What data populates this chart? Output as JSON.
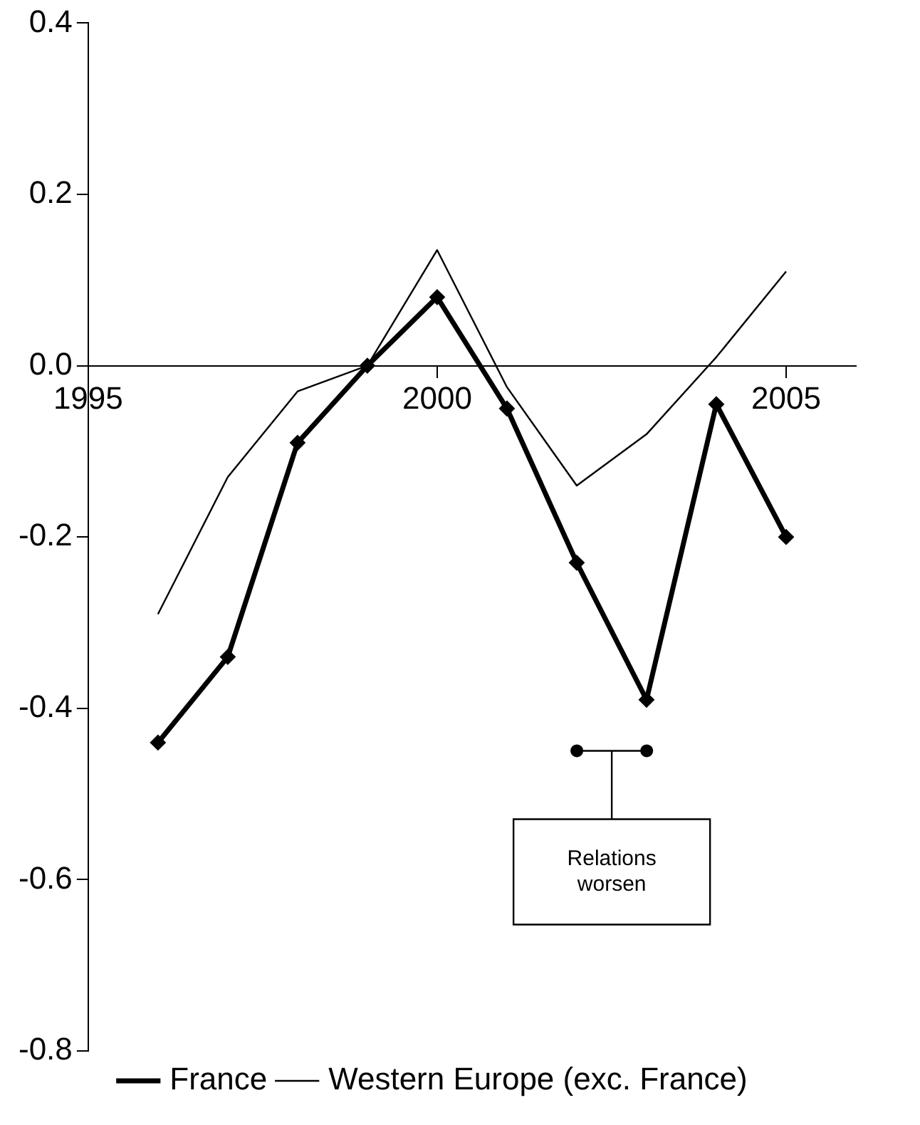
{
  "chart_data": {
    "type": "line",
    "xlim": [
      1995,
      2006
    ],
    "xticks": [
      1995,
      2000,
      2005
    ],
    "ylim": [
      -0.8,
      0.4
    ],
    "yticks": [
      {
        "value": -0.8,
        "label": "-0.8"
      },
      {
        "value": -0.6,
        "label": "-0.6"
      },
      {
        "value": -0.4,
        "label": "-0.4"
      },
      {
        "value": -0.2,
        "label": "-0.2"
      },
      {
        "value": 0,
        "label": "0.0"
      },
      {
        "value": 0.2,
        "label": "0.2"
      },
      {
        "value": 0.4,
        "label": "0.4"
      }
    ],
    "x": [
      1996,
      1997,
      1998,
      1999,
      2000,
      2001,
      2002,
      2003,
      2004,
      2005
    ],
    "series": [
      {
        "name": "France",
        "color": "#000000",
        "marker": "diamond",
        "values": [
          -0.44,
          -0.34,
          -0.09,
          0.0,
          0.08,
          -0.05,
          -0.23,
          -0.39,
          -0.045,
          -0.2
        ]
      },
      {
        "name": "Western Europe (exc. France)",
        "color": "#000000",
        "marker": "none",
        "values": [
          -0.29,
          -0.13,
          -0.03,
          0.0,
          0.135,
          -0.025,
          -0.14,
          -0.08,
          0.01,
          0.11
        ]
      }
    ],
    "annotations": [
      "Relations worsen"
    ],
    "grid": false,
    "legend": "bottom",
    "line_style": "solid"
  }
}
